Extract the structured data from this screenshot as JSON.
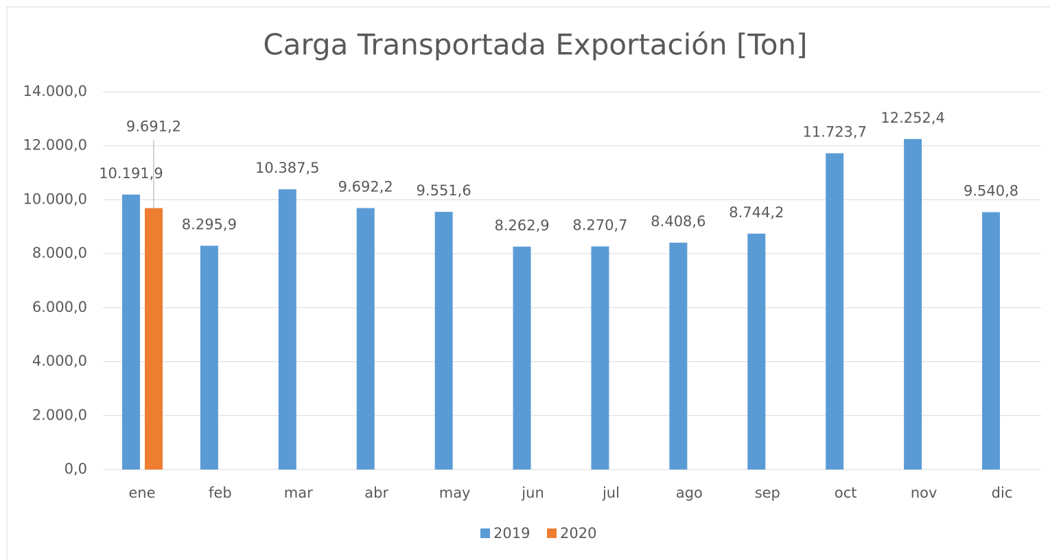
{
  "chart_data": {
    "type": "bar",
    "title": "Carga Transportada Exportación [Ton]",
    "categories": [
      "ene",
      "feb",
      "mar",
      "abr",
      "may",
      "jun",
      "jul",
      "ago",
      "sep",
      "oct",
      "nov",
      "dic"
    ],
    "series": [
      {
        "name": "2019",
        "color": "#5b9bd5",
        "values": [
          10191.9,
          8295.9,
          10387.5,
          9692.2,
          9551.6,
          8262.9,
          8270.7,
          8408.6,
          8744.2,
          11723.7,
          12252.4,
          9540.8
        ],
        "value_labels": [
          "10.191,9",
          "8.295,9",
          "10.387,5",
          "9.692,2",
          "9.551,6",
          "8.262,9",
          "8.270,7",
          "8.408,6",
          "8.744,2",
          "11.723,7",
          "12.252,4",
          "9.540,8"
        ]
      },
      {
        "name": "2020",
        "color": "#ed7d31",
        "values": [
          9691.2,
          null,
          null,
          null,
          null,
          null,
          null,
          null,
          null,
          null,
          null,
          null
        ],
        "value_labels": [
          "9.691,2",
          null,
          null,
          null,
          null,
          null,
          null,
          null,
          null,
          null,
          null,
          null
        ]
      }
    ],
    "ylim": [
      0,
      14000
    ],
    "yticks": [
      {
        "value": 0,
        "label": "0,0"
      },
      {
        "value": 2000,
        "label": "2.000,0"
      },
      {
        "value": 4000,
        "label": "4.000,0"
      },
      {
        "value": 6000,
        "label": "6.000,0"
      },
      {
        "value": 8000,
        "label": "8.000,0"
      },
      {
        "value": 10000,
        "label": "10.000,0"
      },
      {
        "value": 12000,
        "label": "12.000,0"
      },
      {
        "value": 14000,
        "label": "14.000,0"
      }
    ],
    "grid": true,
    "legend": "bottom"
  }
}
